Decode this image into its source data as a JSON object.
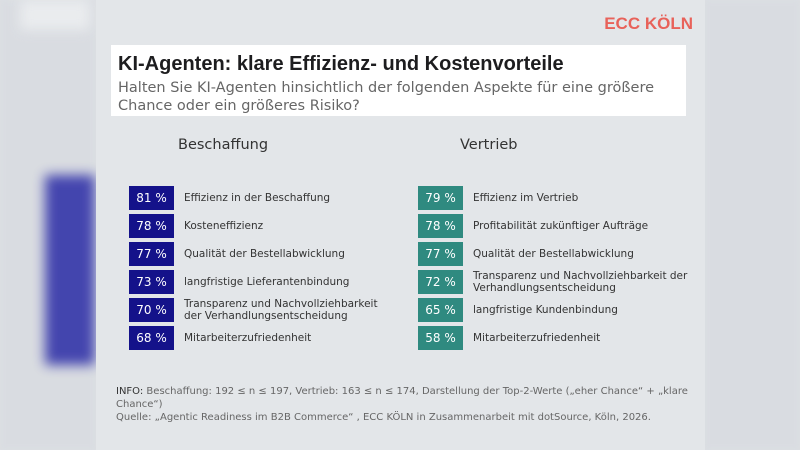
{
  "logo": "ECC KÖLN",
  "title": "KI-Agenten: klare Effizienz- und Kostenvorteile",
  "subtitle": "Halten Sie KI-Agenten hinsichtlich der folgenden Aspekte für eine größere Chance oder ein größeres Risiko?",
  "colors": {
    "beschaffung": "#14128a",
    "vertrieb": "#2f8a80",
    "logo": "#e8625a"
  },
  "chart_data": {
    "type": "table",
    "title": "KI-Agenten: klare Effizienz- und Kostenvorteile",
    "groups": [
      {
        "name": "Beschaffung",
        "items": [
          {
            "value": "81 %",
            "label": "Effizienz in der Beschaffung"
          },
          {
            "value": "78 %",
            "label": "Kosteneffizienz"
          },
          {
            "value": "77 %",
            "label": "Qualität der Bestellabwicklung"
          },
          {
            "value": "73 %",
            "label": "langfristige Lieferantenbindung"
          },
          {
            "value": "70 %",
            "label": "Transparenz und Nachvollziehbarkeit der Verhandlungsentscheidung"
          },
          {
            "value": "68 %",
            "label": "Mitarbeiterzufriedenheit"
          }
        ]
      },
      {
        "name": "Vertrieb",
        "items": [
          {
            "value": "79 %",
            "label": "Effizienz im Vertrieb"
          },
          {
            "value": "78 %",
            "label": "Profitabilität zukünftiger Aufträge"
          },
          {
            "value": "77 %",
            "label": "Qualität der Bestellabwicklung"
          },
          {
            "value": "72 %",
            "label": "Transparenz und Nachvollziehbarkeit der Verhandlungsentscheidung"
          },
          {
            "value": "65 %",
            "label": "langfristige Kundenbindung"
          },
          {
            "value": "58 %",
            "label": "Mitarbeiterzufriedenheit"
          }
        ]
      }
    ]
  },
  "info": {
    "prefix": "INFO:",
    "text": " Beschaffung: 192 ≤ n ≤ 197, Vertrieb: 163 ≤ n ≤ 174, Darstellung der Top-2-Werte („eher Chance“ + „klare Chance“)",
    "source": "Quelle: „Agentic Readiness im B2B Commerce“ , ECC KÖLN in Zusammenarbeit mit dotSource, Köln, 2026."
  }
}
